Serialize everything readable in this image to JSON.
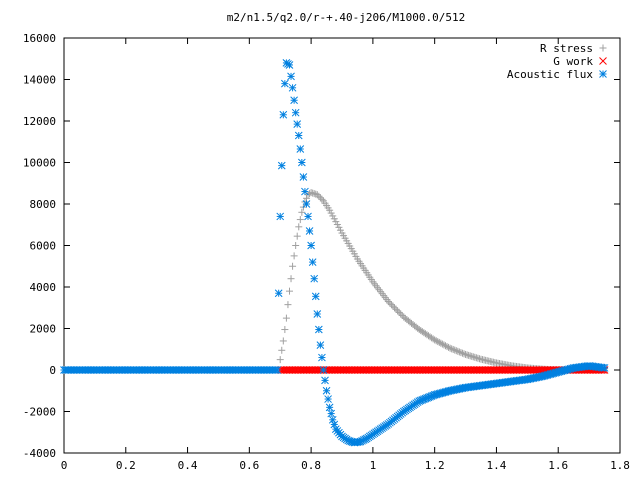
{
  "chart_data": {
    "type": "scatter",
    "title": "m2/n1.5/q2.0/r-+.40-j206/M1000.0/512",
    "xlabel": "",
    "ylabel": "",
    "xlim": [
      0,
      1.8
    ],
    "ylim": [
      -4000,
      16000
    ],
    "x_ticks": [
      "0",
      "0.2",
      "0.4",
      "0.6",
      "0.8",
      "1",
      "1.2",
      "1.4",
      "1.6",
      "1.8"
    ],
    "y_ticks": [
      "-4000",
      "-2000",
      "0",
      "2000",
      "4000",
      "6000",
      "8000",
      "10000",
      "12000",
      "14000",
      "16000"
    ],
    "grid": false,
    "legend_position": "top-right",
    "series": [
      {
        "name": "R stress",
        "marker": "plus",
        "color": "#a0a0a0",
        "points": [
          [
            0.7,
            500
          ],
          [
            0.71,
            1400
          ],
          [
            0.72,
            2500
          ],
          [
            0.73,
            3800
          ],
          [
            0.74,
            5000
          ],
          [
            0.75,
            6000
          ],
          [
            0.76,
            6900
          ],
          [
            0.77,
            7600
          ],
          [
            0.78,
            8100
          ],
          [
            0.79,
            8450
          ],
          [
            0.8,
            8550
          ],
          [
            0.82,
            8450
          ],
          [
            0.84,
            8150
          ],
          [
            0.86,
            7700
          ],
          [
            0.88,
            7150
          ],
          [
            0.9,
            6600
          ],
          [
            0.95,
            5350
          ],
          [
            1.0,
            4250
          ],
          [
            1.05,
            3300
          ],
          [
            1.1,
            2550
          ],
          [
            1.15,
            1950
          ],
          [
            1.2,
            1450
          ],
          [
            1.25,
            1050
          ],
          [
            1.3,
            750
          ],
          [
            1.35,
            520
          ],
          [
            1.4,
            340
          ],
          [
            1.45,
            200
          ],
          [
            1.5,
            100
          ],
          [
            1.55,
            40
          ],
          [
            1.6,
            0
          ],
          [
            1.65,
            10
          ],
          [
            1.7,
            60
          ],
          [
            1.75,
            60
          ]
        ]
      },
      {
        "name": "G work",
        "marker": "cross",
        "color": "#ff0000",
        "points": [
          [
            0.7,
            0
          ],
          [
            0.8,
            0
          ],
          [
            0.9,
            0
          ],
          [
            1.0,
            0
          ],
          [
            1.1,
            0
          ],
          [
            1.2,
            0
          ],
          [
            1.3,
            0
          ],
          [
            1.4,
            0
          ],
          [
            1.5,
            0
          ],
          [
            1.6,
            0
          ],
          [
            1.7,
            0
          ],
          [
            1.75,
            0
          ]
        ]
      },
      {
        "name": "Acoustic flux",
        "marker": "asterisk",
        "color": "#0080e0",
        "points": [
          [
            0.0,
            0
          ],
          [
            0.1,
            0
          ],
          [
            0.2,
            0
          ],
          [
            0.3,
            0
          ],
          [
            0.4,
            0
          ],
          [
            0.5,
            0
          ],
          [
            0.6,
            0
          ],
          [
            0.69,
            0
          ],
          [
            0.7,
            7400
          ],
          [
            0.71,
            12300
          ],
          [
            0.715,
            13800
          ],
          [
            0.72,
            14800
          ],
          [
            0.73,
            14700
          ],
          [
            0.74,
            13600
          ],
          [
            0.75,
            12400
          ],
          [
            0.76,
            11300
          ],
          [
            0.77,
            10000
          ],
          [
            0.78,
            8600
          ],
          [
            0.79,
            7400
          ],
          [
            0.8,
            6000
          ],
          [
            0.81,
            4400
          ],
          [
            0.82,
            2700
          ],
          [
            0.83,
            1200
          ],
          [
            0.84,
            0
          ],
          [
            0.85,
            -1000
          ],
          [
            0.86,
            -1800
          ],
          [
            0.87,
            -2400
          ],
          [
            0.88,
            -2850
          ],
          [
            0.9,
            -3200
          ],
          [
            0.92,
            -3400
          ],
          [
            0.94,
            -3500
          ],
          [
            0.96,
            -3450
          ],
          [
            0.98,
            -3300
          ],
          [
            1.0,
            -3100
          ],
          [
            1.05,
            -2600
          ],
          [
            1.1,
            -2000
          ],
          [
            1.15,
            -1500
          ],
          [
            1.2,
            -1200
          ],
          [
            1.25,
            -1000
          ],
          [
            1.3,
            -850
          ],
          [
            1.35,
            -750
          ],
          [
            1.4,
            -650
          ],
          [
            1.45,
            -550
          ],
          [
            1.5,
            -450
          ],
          [
            1.55,
            -300
          ],
          [
            1.6,
            -100
          ],
          [
            1.65,
            100
          ],
          [
            1.7,
            200
          ],
          [
            1.75,
            100
          ]
        ]
      }
    ]
  }
}
